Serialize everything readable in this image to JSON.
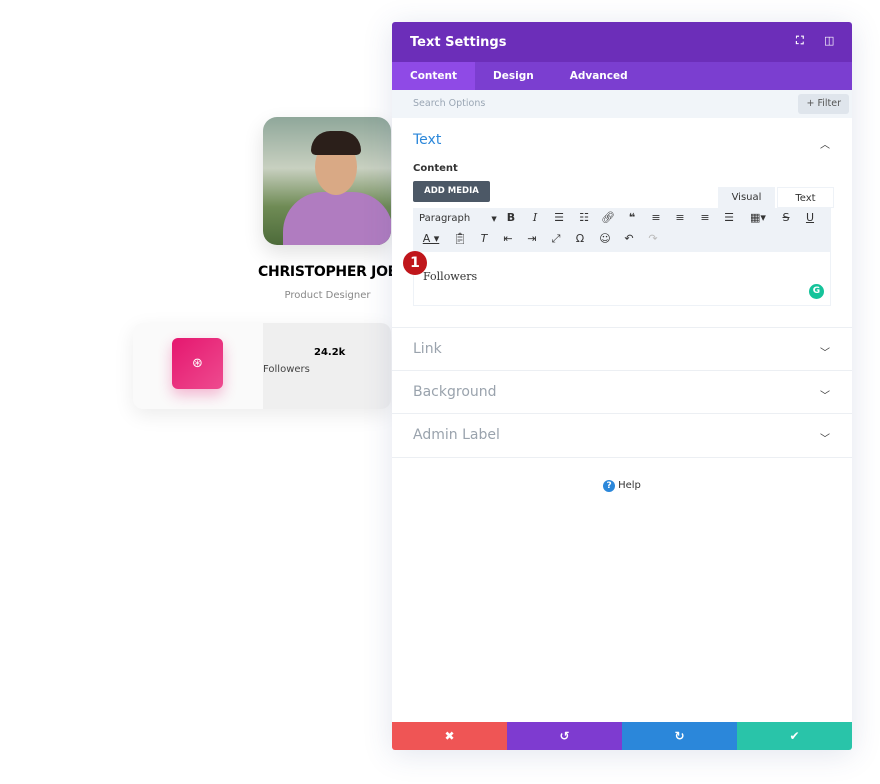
{
  "profile": {
    "name": "CHRISTOPHER JOE",
    "role": "Product Designer",
    "stat_value": "24.2k",
    "stat_label": "Followers",
    "icon": "dribbble-icon",
    "icon_color": "#e5176f"
  },
  "panel": {
    "title": "Text Settings",
    "header_icons": [
      "expand-icon",
      "sidebar-icon"
    ],
    "tabs": [
      "Content",
      "Design",
      "Advanced"
    ],
    "active_tab": "Content",
    "search_placeholder": "Search Options",
    "filter_label": "+ Filter",
    "text_section": {
      "title": "Text",
      "content_label": "Content",
      "add_media": "ADD MEDIA",
      "editor_tabs": [
        "Visual",
        "Text"
      ],
      "format_select": "Paragraph",
      "editor_content": "Followers",
      "step_badge": "1"
    },
    "sections": [
      "Link",
      "Background",
      "Admin Label"
    ],
    "help": "Help",
    "footer": {
      "cancel": "✖",
      "undo": "↺",
      "redo": "↻",
      "save": "✔"
    },
    "colors": {
      "header": "#6c2eb9",
      "tabs": "#7b3ed0",
      "cancel": "#ef5555",
      "undo": "#7e3bd0",
      "redo": "#2b87da",
      "save": "#29c4a9"
    }
  }
}
